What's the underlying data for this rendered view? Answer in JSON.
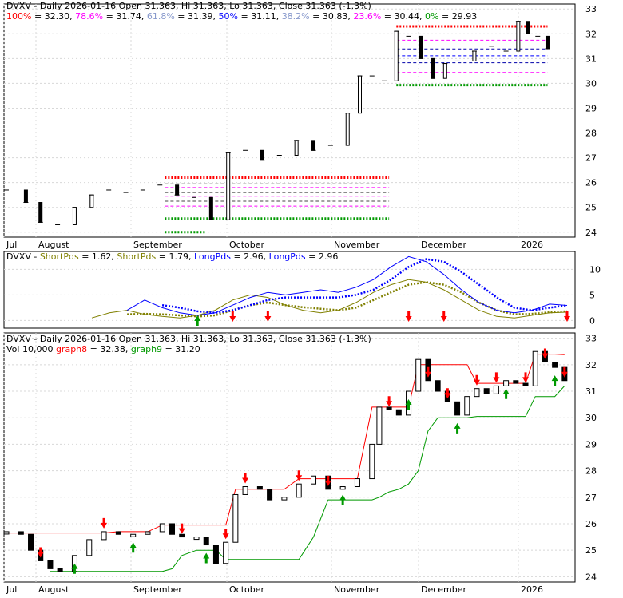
{
  "chart_data": [
    {
      "type": "ohlc",
      "title": "DVXV - Daily 2026-01-16 Open 31.363, Hi 31.363, Lo 31.363, Close 31.363 (-1.3%)",
      "fib_legend": [
        {
          "label": "100%",
          "value": "32.30",
          "color": "#ff0000"
        },
        {
          "label": "78.6%",
          "value": "31.74",
          "color": "#ff00ff"
        },
        {
          "label": "61.8%",
          "value": "31.39",
          "color": "#8899cc"
        },
        {
          "label": "50%",
          "value": "31.11",
          "color": "#0000ff"
        },
        {
          "label": "38.2%",
          "value": "30.83",
          "color": "#8899cc"
        },
        {
          "label": "23.6%",
          "value": "30.44",
          "color": "#ff00ff"
        },
        {
          "label": "0%",
          "value": "29.93",
          "color": "#009900"
        }
      ],
      "x_labels": [
        "Jul",
        "August",
        "September",
        "October",
        "November",
        "December",
        "2026"
      ],
      "y_ticks": [
        24,
        25,
        26,
        27,
        28,
        29,
        30,
        31,
        32,
        33
      ],
      "ylim": [
        23.8,
        33.2
      ],
      "price_series": [
        {
          "x": 0,
          "y": 25.7
        },
        {
          "x": 8,
          "y": 25.2
        },
        {
          "x": 14,
          "y": 24.4
        },
        {
          "x": 21,
          "y": 24.3
        },
        {
          "x": 28,
          "y": 25.0
        },
        {
          "x": 35,
          "y": 25.5
        },
        {
          "x": 42,
          "y": 25.7
        },
        {
          "x": 49,
          "y": 25.6
        },
        {
          "x": 56,
          "y": 25.7
        },
        {
          "x": 63,
          "y": 25.9
        },
        {
          "x": 70,
          "y": 25.5
        },
        {
          "x": 77,
          "y": 25.4
        },
        {
          "x": 84,
          "y": 24.5
        },
        {
          "x": 91,
          "y": 27.2
        },
        {
          "x": 98,
          "y": 27.3
        },
        {
          "x": 105,
          "y": 26.9
        },
        {
          "x": 112,
          "y": 27.1
        },
        {
          "x": 119,
          "y": 27.7
        },
        {
          "x": 126,
          "y": 27.3
        },
        {
          "x": 133,
          "y": 27.5
        },
        {
          "x": 140,
          "y": 28.8
        },
        {
          "x": 145,
          "y": 30.3
        },
        {
          "x": 150,
          "y": 30.3
        },
        {
          "x": 155,
          "y": 30.1
        },
        {
          "x": 160,
          "y": 32.1
        },
        {
          "x": 165,
          "y": 31.9
        },
        {
          "x": 170,
          "y": 31.0
        },
        {
          "x": 175,
          "y": 30.2
        },
        {
          "x": 180,
          "y": 30.8
        },
        {
          "x": 185,
          "y": 30.9
        },
        {
          "x": 192,
          "y": 31.3
        },
        {
          "x": 199,
          "y": 31.5
        },
        {
          "x": 205,
          "y": 31.3
        },
        {
          "x": 210,
          "y": 32.5
        },
        {
          "x": 214,
          "y": 32.0
        },
        {
          "x": 218,
          "y": 31.9
        },
        {
          "x": 222,
          "y": 31.4
        }
      ],
      "fib_levels": [
        32.3,
        31.74,
        31.39,
        31.11,
        30.83,
        30.44,
        29.93
      ],
      "support_levels": [
        26.2,
        24.0,
        24.55
      ]
    },
    {
      "type": "line",
      "title_parts": [
        {
          "text": "DVXV - ",
          "color": "#000000"
        },
        {
          "text": "ShortPds",
          "color": "#808000"
        },
        {
          "text": " = 1.62, ",
          "color": "#000000"
        },
        {
          "text": "ShortPds",
          "color": "#808000"
        },
        {
          "text": " = 1.79, ",
          "color": "#000000"
        },
        {
          "text": "LongPds",
          "color": "#0000ff"
        },
        {
          "text": " = 2.96, ",
          "color": "#000000"
        },
        {
          "text": "LongPds",
          "color": "#0000ff"
        },
        {
          "text": " = 2.96",
          "color": "#000000"
        }
      ],
      "y_ticks": [
        0,
        5,
        10
      ],
      "ylim": [
        -1.5,
        13.5
      ],
      "series": [
        {
          "name": "ShortPds",
          "color": "#808000",
          "values": [
            0.5,
            1.5,
            2.0,
            1.2,
            0.8,
            0.5,
            1.0,
            2.0,
            4.0,
            5.0,
            4.5,
            3.0,
            2.0,
            1.5,
            2.0,
            3.5,
            5.5,
            7.0,
            8.0,
            7.5,
            6.0,
            4.0,
            2.0,
            0.8,
            0.5,
            1.0,
            1.5,
            1.62
          ]
        },
        {
          "name": "ShortPds",
          "color": "#808000",
          "values": [
            null,
            null,
            1.2,
            1.3,
            1.2,
            1.0,
            0.8,
            1.0,
            2.0,
            3.0,
            3.5,
            3.0,
            2.6,
            2.3,
            2.0,
            2.5,
            4.0,
            5.5,
            7.0,
            7.5,
            7.0,
            5.5,
            3.5,
            2.0,
            1.2,
            1.3,
            1.6,
            1.79
          ]
        },
        {
          "name": "LongPds",
          "color": "#0000ff",
          "values": [
            null,
            null,
            2.0,
            4.0,
            2.5,
            1.5,
            1.0,
            1.5,
            3.0,
            4.5,
            5.5,
            5.0,
            5.5,
            6.0,
            5.5,
            6.5,
            8.0,
            10.5,
            12.5,
            11.5,
            9.0,
            6.0,
            3.5,
            2.0,
            1.5,
            2.0,
            3.2,
            2.96
          ]
        },
        {
          "name": "LongPds",
          "color": "#0000ff",
          "values": [
            null,
            null,
            null,
            null,
            3.0,
            2.5,
            1.8,
            1.5,
            2.0,
            3.0,
            4.0,
            4.5,
            4.5,
            4.5,
            4.5,
            5.0,
            6.0,
            8.0,
            10.5,
            12.0,
            11.5,
            9.5,
            7.0,
            4.5,
            2.5,
            2.0,
            2.5,
            2.96
          ]
        }
      ],
      "signals": [
        {
          "i": 6,
          "dir": "up"
        },
        {
          "i": 8,
          "dir": "down"
        },
        {
          "i": 10,
          "dir": "down"
        },
        {
          "i": 18,
          "dir": "down"
        },
        {
          "i": 20,
          "dir": "down"
        },
        {
          "i": 27,
          "dir": "down"
        }
      ]
    },
    {
      "type": "ohlc",
      "title": "DVXV - Daily 2026-01-16 Open 31.363, Hi 31.363, Lo 31.363, Close 31.363 (-1.3%)",
      "subtitle_parts": [
        {
          "text": "Vol 10,000 ",
          "color": "#000000"
        },
        {
          "text": "graph8",
          "color": "#ff0000"
        },
        {
          "text": " = 32.38, ",
          "color": "#000000"
        },
        {
          "text": "graph9",
          "color": "#009900"
        },
        {
          "text": " = 31.20",
          "color": "#000000"
        }
      ],
      "x_labels": [
        "Jul",
        "August",
        "September",
        "October",
        "November",
        "December",
        "2026"
      ],
      "y_ticks": [
        24,
        25,
        26,
        27,
        28,
        29,
        30,
        31,
        32,
        33
      ],
      "ylim": [
        23.8,
        33.2
      ],
      "price_series": [
        {
          "x": 0,
          "y": 25.7
        },
        {
          "x": 6,
          "y": 25.6
        },
        {
          "x": 10,
          "y": 25.0
        },
        {
          "x": 14,
          "y": 24.6
        },
        {
          "x": 18,
          "y": 24.3
        },
        {
          "x": 22,
          "y": 24.2
        },
        {
          "x": 28,
          "y": 24.8
        },
        {
          "x": 34,
          "y": 25.4
        },
        {
          "x": 40,
          "y": 25.7
        },
        {
          "x": 46,
          "y": 25.6
        },
        {
          "x": 52,
          "y": 25.6
        },
        {
          "x": 58,
          "y": 25.7
        },
        {
          "x": 64,
          "y": 26.0
        },
        {
          "x": 68,
          "y": 25.6
        },
        {
          "x": 72,
          "y": 25.5
        },
        {
          "x": 78,
          "y": 25.5
        },
        {
          "x": 82,
          "y": 25.2
        },
        {
          "x": 86,
          "y": 24.5
        },
        {
          "x": 90,
          "y": 25.3
        },
        {
          "x": 94,
          "y": 27.1
        },
        {
          "x": 98,
          "y": 27.4
        },
        {
          "x": 104,
          "y": 27.3
        },
        {
          "x": 108,
          "y": 26.9
        },
        {
          "x": 114,
          "y": 27.0
        },
        {
          "x": 120,
          "y": 27.5
        },
        {
          "x": 126,
          "y": 27.8
        },
        {
          "x": 132,
          "y": 27.3
        },
        {
          "x": 138,
          "y": 27.4
        },
        {
          "x": 144,
          "y": 27.7
        },
        {
          "x": 150,
          "y": 29.0
        },
        {
          "x": 153,
          "y": 30.4
        },
        {
          "x": 157,
          "y": 30.3
        },
        {
          "x": 161,
          "y": 30.1
        },
        {
          "x": 165,
          "y": 31.0
        },
        {
          "x": 169,
          "y": 32.2
        },
        {
          "x": 173,
          "y": 31.4
        },
        {
          "x": 177,
          "y": 31.0
        },
        {
          "x": 181,
          "y": 30.6
        },
        {
          "x": 185,
          "y": 30.1
        },
        {
          "x": 189,
          "y": 30.8
        },
        {
          "x": 193,
          "y": 31.1
        },
        {
          "x": 197,
          "y": 30.9
        },
        {
          "x": 201,
          "y": 31.2
        },
        {
          "x": 205,
          "y": 31.4
        },
        {
          "x": 209,
          "y": 31.3
        },
        {
          "x": 213,
          "y": 31.2
        },
        {
          "x": 217,
          "y": 32.5
        },
        {
          "x": 221,
          "y": 32.1
        },
        {
          "x": 225,
          "y": 31.9
        },
        {
          "x": 229,
          "y": 31.4
        }
      ],
      "graph8_series": [
        25.65,
        25.65,
        25.65,
        25.65,
        25.65,
        25.65,
        25.65,
        25.65,
        25.65,
        25.7,
        25.7,
        25.7,
        25.95,
        25.95,
        25.95,
        25.95,
        25.95,
        25.95,
        25.95,
        27.3,
        27.3,
        27.3,
        27.3,
        27.3,
        27.7,
        27.7,
        27.7,
        27.7,
        27.7,
        30.4,
        30.4,
        30.4,
        30.4,
        30.4,
        32.0,
        32.0,
        32.0,
        32.0,
        32.0,
        32.0,
        31.3,
        31.3,
        31.3,
        31.3,
        31.3,
        31.3,
        32.4,
        32.4,
        32.4,
        32.38
      ],
      "graph9_series": [
        null,
        null,
        null,
        null,
        24.2,
        24.2,
        24.2,
        24.2,
        24.2,
        24.2,
        24.2,
        24.2,
        24.2,
        24.3,
        24.8,
        25.0,
        25.0,
        25.0,
        24.65,
        24.65,
        24.65,
        24.65,
        24.65,
        24.65,
        24.65,
        25.5,
        26.9,
        26.9,
        26.9,
        26.9,
        27.0,
        27.2,
        27.3,
        27.5,
        28.0,
        29.5,
        30.0,
        30.0,
        30.0,
        30.0,
        30.05,
        30.05,
        30.05,
        30.05,
        30.05,
        30.05,
        30.8,
        30.8,
        30.8,
        31.2
      ],
      "signals": [
        {
          "i": 3,
          "dir": "down"
        },
        {
          "i": 6,
          "dir": "up"
        },
        {
          "i": 8,
          "dir": "down"
        },
        {
          "i": 10,
          "dir": "up"
        },
        {
          "i": 14,
          "dir": "down"
        },
        {
          "i": 16,
          "dir": "up"
        },
        {
          "i": 18,
          "dir": "down"
        },
        {
          "i": 20,
          "dir": "down"
        },
        {
          "i": 24,
          "dir": "down"
        },
        {
          "i": 26,
          "dir": "down"
        },
        {
          "i": 27,
          "dir": "up"
        },
        {
          "i": 31,
          "dir": "down"
        },
        {
          "i": 33,
          "dir": "up"
        },
        {
          "i": 35,
          "dir": "down"
        },
        {
          "i": 37,
          "dir": "down"
        },
        {
          "i": 38,
          "dir": "up"
        },
        {
          "i": 40,
          "dir": "down"
        },
        {
          "i": 42,
          "dir": "down"
        },
        {
          "i": 43,
          "dir": "up"
        },
        {
          "i": 45,
          "dir": "down"
        },
        {
          "i": 47,
          "dir": "down"
        },
        {
          "i": 48,
          "dir": "up"
        },
        {
          "i": 49,
          "dir": "down"
        }
      ]
    }
  ]
}
